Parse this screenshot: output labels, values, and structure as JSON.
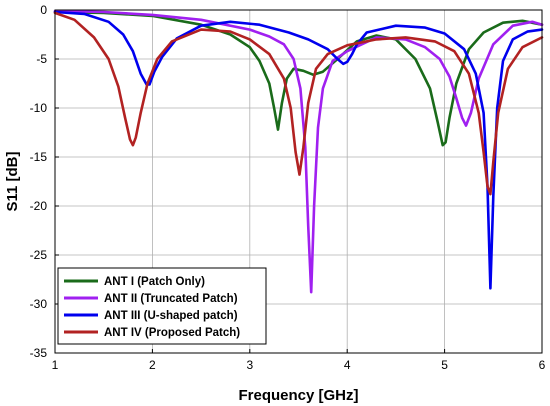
{
  "chart_data": {
    "type": "line",
    "xlabel": "Frequency [GHz]",
    "ylabel": "S11 [dB]",
    "xlim": [
      1,
      6
    ],
    "ylim": [
      -35,
      0
    ],
    "xticks": [
      1,
      2,
      3,
      4,
      5,
      6
    ],
    "yticks": [
      0,
      -5,
      -10,
      -15,
      -20,
      -25,
      -30,
      -35
    ],
    "grid": true,
    "legend_position": "bottom-left",
    "series": [
      {
        "name": "ANT I (Patch Only)",
        "color": "#1a6b1a",
        "x": [
          1.0,
          1.5,
          2.0,
          2.5,
          2.8,
          3.0,
          3.1,
          3.2,
          3.25,
          3.29,
          3.33,
          3.38,
          3.45,
          3.55,
          3.65,
          3.75,
          3.9,
          4.1,
          4.3,
          4.5,
          4.7,
          4.85,
          4.93,
          4.98,
          5.01,
          5.05,
          5.12,
          5.25,
          5.4,
          5.6,
          5.8,
          6.0
        ],
        "y": [
          -0.2,
          -0.3,
          -0.6,
          -1.5,
          -2.5,
          -3.8,
          -5.2,
          -7.5,
          -10.0,
          -12.2,
          -9.5,
          -7.0,
          -6.0,
          -6.2,
          -6.6,
          -6.3,
          -5.0,
          -3.2,
          -2.6,
          -3.0,
          -5.0,
          -8.0,
          -11.5,
          -13.8,
          -13.5,
          -11.0,
          -7.5,
          -4.0,
          -2.3,
          -1.3,
          -1.1,
          -1.5
        ]
      },
      {
        "name": "ANT II (Truncated Patch)",
        "color": "#a020f0",
        "x": [
          1.0,
          1.5,
          2.0,
          2.5,
          3.0,
          3.2,
          3.35,
          3.45,
          3.52,
          3.57,
          3.6,
          3.63,
          3.66,
          3.7,
          3.75,
          3.85,
          4.0,
          4.3,
          4.6,
          4.8,
          4.95,
          5.05,
          5.12,
          5.18,
          5.22,
          5.27,
          5.35,
          5.5,
          5.7,
          5.9,
          6.0
        ],
        "y": [
          -0.1,
          -0.2,
          -0.5,
          -1.0,
          -2.0,
          -2.7,
          -3.5,
          -5.0,
          -8.0,
          -14.0,
          -22.0,
          -28.8,
          -20.0,
          -12.0,
          -8.0,
          -5.2,
          -4.2,
          -2.8,
          -3.0,
          -3.8,
          -5.0,
          -6.8,
          -9.0,
          -11.0,
          -11.8,
          -10.5,
          -7.0,
          -3.5,
          -1.6,
          -1.2,
          -1.5
        ]
      },
      {
        "name": "ANT III (U-shaped patch)",
        "color": "#0000ee",
        "x": [
          1.0,
          1.3,
          1.55,
          1.7,
          1.8,
          1.88,
          1.94,
          1.97,
          2.02,
          2.1,
          2.25,
          2.5,
          2.8,
          3.1,
          3.4,
          3.6,
          3.8,
          3.9,
          3.96,
          4.0,
          4.05,
          4.1,
          4.2,
          4.5,
          4.8,
          5.0,
          5.2,
          5.32,
          5.4,
          5.44,
          5.47,
          5.5,
          5.54,
          5.6,
          5.7,
          5.85,
          6.0
        ],
        "y": [
          -0.2,
          -0.4,
          -1.2,
          -2.5,
          -4.2,
          -6.5,
          -7.6,
          -7.6,
          -6.3,
          -4.8,
          -2.9,
          -1.6,
          -1.2,
          -1.5,
          -2.3,
          -3.0,
          -4.0,
          -5.0,
          -5.5,
          -5.3,
          -4.5,
          -3.5,
          -2.3,
          -1.6,
          -1.8,
          -2.4,
          -4.0,
          -6.5,
          -10.5,
          -18.0,
          -28.4,
          -19.0,
          -10.0,
          -5.2,
          -3.0,
          -2.2,
          -2.0
        ]
      },
      {
        "name": "ANT IV (Proposed Patch)",
        "color": "#b22222",
        "x": [
          1.0,
          1.2,
          1.4,
          1.55,
          1.65,
          1.72,
          1.77,
          1.8,
          1.83,
          1.88,
          1.95,
          2.05,
          2.2,
          2.5,
          2.8,
          3.0,
          3.2,
          3.35,
          3.42,
          3.47,
          3.51,
          3.55,
          3.6,
          3.68,
          3.8,
          4.0,
          4.3,
          4.6,
          4.9,
          5.1,
          5.25,
          5.35,
          5.4,
          5.44,
          5.47,
          5.5,
          5.55,
          5.65,
          5.8,
          6.0
        ],
        "y": [
          -0.3,
          -1.0,
          -2.8,
          -5.0,
          -7.8,
          -11.0,
          -13.2,
          -13.8,
          -13.0,
          -10.5,
          -7.5,
          -5.0,
          -3.2,
          -2.0,
          -2.2,
          -3.0,
          -4.5,
          -7.0,
          -10.0,
          -14.5,
          -16.8,
          -14.0,
          -9.5,
          -6.0,
          -4.5,
          -3.6,
          -3.0,
          -2.8,
          -3.2,
          -4.2,
          -6.5,
          -10.5,
          -14.5,
          -18.0,
          -18.8,
          -15.5,
          -10.5,
          -6.0,
          -3.8,
          -2.8
        ]
      }
    ]
  }
}
